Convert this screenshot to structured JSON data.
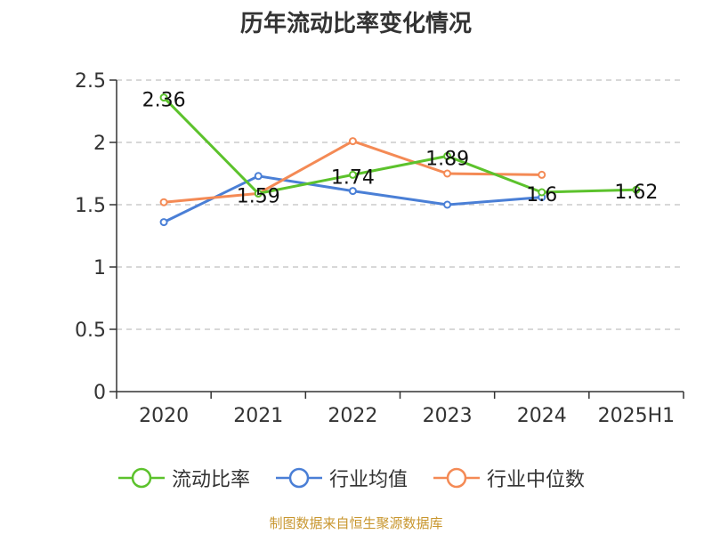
{
  "title": "历年流动比率变化情况",
  "source": "制图数据来自恒生聚源数据库",
  "colors": {
    "axis": "#333333",
    "grid": "#cccccc",
    "text": "#333333"
  },
  "chart_data": {
    "type": "line",
    "title": "历年流动比率变化情况",
    "xlabel": "",
    "ylabel": "",
    "categories": [
      "2020",
      "2021",
      "2022",
      "2023",
      "2024",
      "2025H1"
    ],
    "ylim": [
      0,
      2.5
    ],
    "yticks": [
      "0",
      "0.5",
      "1",
      "1.5",
      "2",
      "2.5"
    ],
    "grid": true,
    "legend_position": "bottom",
    "series": [
      {
        "name": "流动比率",
        "color": "#5cc22c",
        "values": [
          2.36,
          1.59,
          1.74,
          1.89,
          1.6,
          1.62
        ],
        "labels": [
          "2.36",
          "1.59",
          "1.74",
          "1.89",
          "1.6",
          "1.62"
        ]
      },
      {
        "name": "行业均值",
        "color": "#4a7fd6",
        "values": [
          1.36,
          1.73,
          1.61,
          1.5,
          1.56,
          null
        ]
      },
      {
        "name": "行业中位数",
        "color": "#f48a55",
        "values": [
          1.52,
          1.59,
          2.01,
          1.75,
          1.74,
          null
        ]
      }
    ]
  }
}
